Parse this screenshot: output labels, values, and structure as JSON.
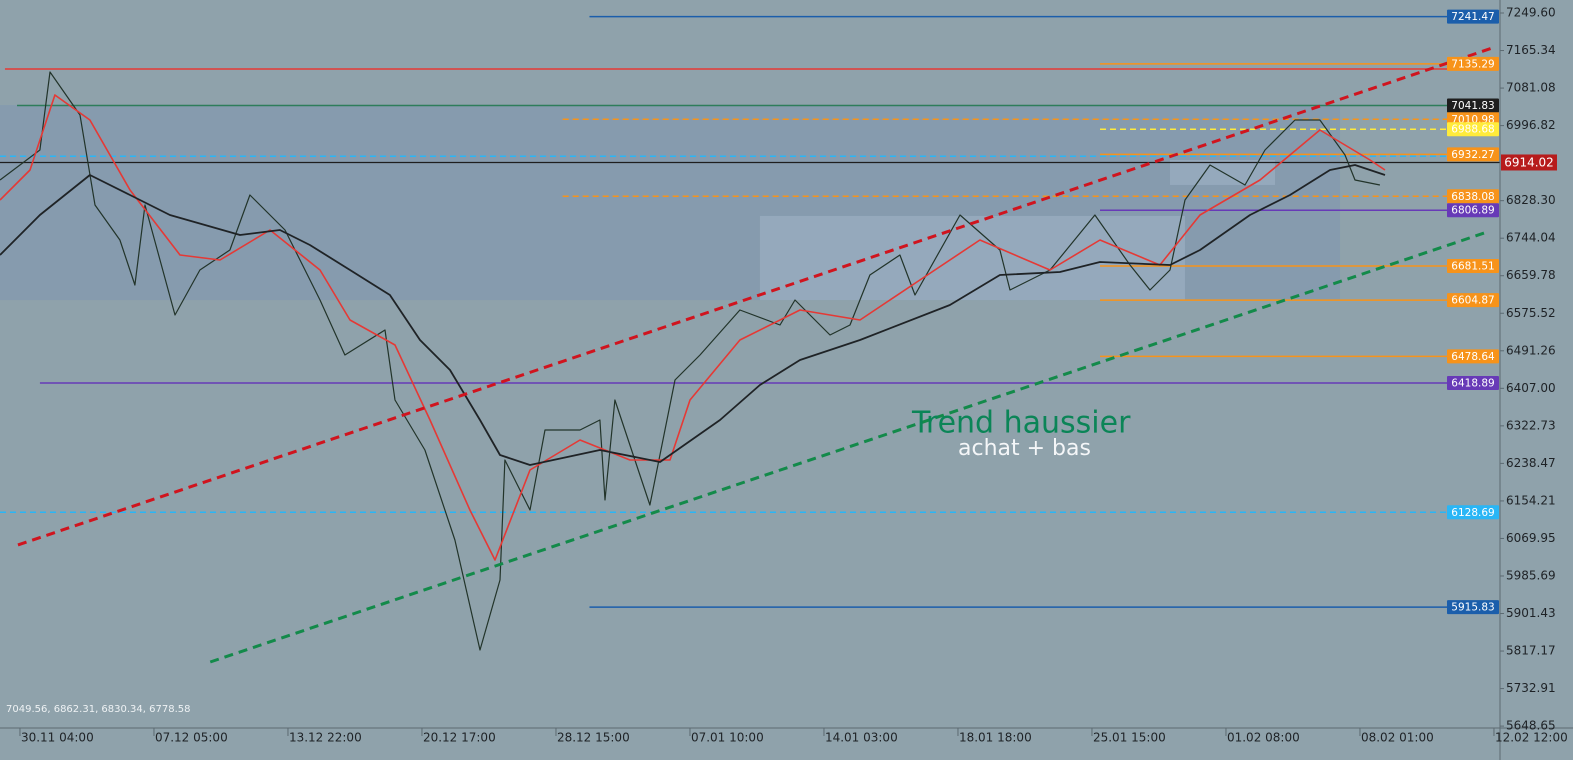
{
  "chart_data": {
    "type": "line",
    "background": "#8fa2ab",
    "xlim": [
      -0.149,
      11.045
    ],
    "ylim": [
      5644.4,
      7278.8
    ],
    "xticks": [
      {
        "value": 0,
        "label": "30.11 04:00"
      },
      {
        "value": 1,
        "label": "07.12 05:00"
      },
      {
        "value": 2,
        "label": "13.12 22:00"
      },
      {
        "value": 3,
        "label": "20.12 17:00"
      },
      {
        "value": 4,
        "label": "28.12 15:00"
      },
      {
        "value": 5,
        "label": "07.01 10:00"
      },
      {
        "value": 6,
        "label": "14.01 03:00"
      },
      {
        "value": 7,
        "label": "18.01 18:00"
      },
      {
        "value": 8,
        "label": "25.01 15:00"
      },
      {
        "value": 9,
        "label": "01.02 08:00"
      },
      {
        "value": 10,
        "label": "08.02 01:00"
      },
      {
        "value": 11,
        "label": "12.02 12:00"
      }
    ],
    "yticks": [
      {
        "value": 7249.6,
        "label": "7249.60"
      },
      7165.34,
      7081.08,
      6996.82,
      {
        "value": 6828.3,
        "label": "6828.30"
      },
      6744.04,
      6659.78,
      6575.52,
      6491.26,
      {
        "value": 6407,
        "label": "6407.00"
      },
      6322.73,
      6238.47,
      6154.21,
      6069.95,
      5985.69,
      5901.43,
      5817.17,
      5732.91,
      5648.65
    ],
    "zones": [
      {
        "x": [
          -0.149,
          9.851
        ],
        "y": [
          6605,
          7043
        ],
        "color": "#7f95b0"
      },
      {
        "x": [
          5.522,
          8.694
        ],
        "y": [
          6605,
          6794
        ],
        "color": "#a3b4c8"
      },
      {
        "x": [
          8.582,
          9.366
        ],
        "y": [
          6863.5,
          6919.6
        ],
        "color": "#a3b4c8"
      }
    ],
    "series": [
      {
        "color": "#22342a",
        "width": 1.2,
        "x": [
          -0.149,
          0.149,
          0.224,
          0.448,
          0.56,
          0.746,
          0.858,
          0.933,
          1.157,
          1.343,
          1.567,
          1.716,
          1.978,
          2.239,
          2.425,
          2.724,
          2.799,
          3.022,
          3.246,
          3.433,
          3.582,
          3.619,
          3.806,
          3.918,
          4.179,
          4.328,
          4.366,
          4.44,
          4.701,
          4.888,
          5.075,
          5.373,
          5.672,
          5.784,
          6.045,
          6.194,
          6.343,
          6.567,
          6.679,
          7.015,
          7.313,
          7.388,
          7.687,
          8.022,
          8.284,
          8.433,
          8.582,
          8.694,
          8.881,
          9.142,
          9.291,
          9.515,
          9.701,
          9.888,
          9.963,
          10.149
        ],
        "values": [
          6874.7,
          6942.1,
          7117.2,
          7020.6,
          6818.6,
          6740.0,
          6639.0,
          6818.6,
          6571.6,
          6672.7,
          6717.5,
          6841.0,
          6762.5,
          6605.3,
          6481.8,
          6537.9,
          6380.8,
          6268.5,
          6066.5,
          5819.5,
          5976.7,
          6246.1,
          6133.9,
          6313.5,
          6313.5,
          6335.9,
          6156.3,
          6380.8,
          6145.1,
          6425.7,
          6481.8,
          6582.8,
          6549.2,
          6605.3,
          6526.7,
          6549.2,
          6661.4,
          6706.3,
          6616.5,
          6796.1,
          6717.5,
          6627.7,
          6672.7,
          6796.1,
          6683.9,
          6627.7,
          6672.7,
          6829.8,
          6908.4,
          6863.5,
          6942.1,
          7009.4,
          7009.4,
          6930.8,
          6874.7,
          6863.5
        ]
      },
      {
        "color": "#e53935",
        "width": 1.6,
        "x": [
          -0.149,
          0.075,
          0.261,
          0.522,
          0.821,
          1.194,
          1.493,
          1.866,
          2.239,
          2.463,
          2.799,
          3.06,
          3.358,
          3.545,
          3.806,
          4.179,
          4.552,
          4.851,
          5.0,
          5.373,
          5.821,
          6.269,
          6.716,
          7.164,
          7.687,
          8.06,
          8.507,
          8.806,
          9.254,
          9.701,
          10.075,
          10.187
        ],
        "values": [
          6829.8,
          6897.2,
          7065.5,
          7009.4,
          6852.3,
          6706.3,
          6695.1,
          6762.5,
          6672.7,
          6560.4,
          6504.3,
          6335.9,
          6133.9,
          6021.6,
          6223.6,
          6291.0,
          6246.1,
          6246.1,
          6380.8,
          6515.5,
          6582.8,
          6560.4,
          6650.2,
          6740.0,
          6672.7,
          6740.0,
          6683.9,
          6796.1,
          6874.7,
          6987.0,
          6919.6,
          6897.2
        ]
      },
      {
        "color": "#1f2326",
        "width": 1.8,
        "x": [
          -0.149,
          0.149,
          0.522,
          0.821,
          1.119,
          1.642,
          1.94,
          2.164,
          2.463,
          2.761,
          2.985,
          3.209,
          3.433,
          3.582,
          3.806,
          4.328,
          4.776,
          5.224,
          5.522,
          5.821,
          6.269,
          6.94,
          7.313,
          7.761,
          8.06,
          8.582,
          8.806,
          9.179,
          9.478,
          9.776,
          9.963,
          10.187
        ],
        "values": [
          6706.3,
          6796.1,
          6885.9,
          6841.0,
          6796.1,
          6751.2,
          6762.5,
          6728.8,
          6672.7,
          6616.5,
          6515.5,
          6448.2,
          6335.9,
          6257.4,
          6234.9,
          6268.5,
          6241.6,
          6335.9,
          6414.5,
          6470.6,
          6515.5,
          6594.1,
          6661.4,
          6668.2,
          6690.6,
          6683.9,
          6717.5,
          6796.1,
          6841.0,
          6897.2,
          6908.4,
          6885.9
        ]
      }
    ],
    "trendlines": [
      {
        "x": [
          -0.015,
          11.01
        ],
        "y": [
          6055.3,
          7173.3
        ],
        "color": "#d0141e"
      },
      {
        "x": [
          1.42,
          10.95
        ],
        "y": [
          5792.6,
          6758.0
        ],
        "color": "#138a4a"
      }
    ],
    "levels": [
      {
        "value": 7241.47,
        "color": "#1b5eab",
        "from": 4.25,
        "dashed": false,
        "tag": true
      },
      {
        "value": 7124,
        "color": "#e53935",
        "from": -0.112,
        "dashed": false,
        "tag": false
      },
      {
        "value": 7135.29,
        "color": "#f7931a",
        "from": 8.06,
        "dashed": false,
        "tag": true
      },
      {
        "value": 7041.83,
        "color": "#2e7d5b",
        "from": -0.022,
        "dashed": false,
        "tag": true,
        "tag_color": "#1e1e1e"
      },
      {
        "value": 7010.98,
        "color": "#f7931a",
        "from": 4.05,
        "dashed": true,
        "tag": true
      },
      {
        "value": 6988.68,
        "color": "#ffeb3b",
        "from": 8.06,
        "dashed": true,
        "tag": true
      },
      {
        "value": 6932.27,
        "color": "#f7931a",
        "from": 8.06,
        "dashed": false,
        "tag": true
      },
      {
        "value": 6928,
        "color": "#29b6f6",
        "from": -0.149,
        "dashed": true,
        "tag": false
      },
      {
        "value": 6838.08,
        "color": "#f7931a",
        "from": 4.05,
        "dashed": true,
        "tag": true
      },
      {
        "value": 6806.89,
        "color": "#673ab7",
        "from": 8.06,
        "dashed": false,
        "tag": true
      },
      {
        "value": 6681.51,
        "color": "#f7931a",
        "from": 8.06,
        "dashed": false,
        "tag": true
      },
      {
        "value": 6604.87,
        "color": "#f7931a",
        "from": 8.06,
        "dashed": false,
        "tag": true
      },
      {
        "value": 6478.64,
        "color": "#f7931a",
        "from": 8.06,
        "dashed": false,
        "tag": true
      },
      {
        "value": 6418.89,
        "color": "#673ab7",
        "from": 0.149,
        "dashed": false,
        "tag": true
      },
      {
        "value": 6128.69,
        "color": "#29b6f6",
        "from": -0.149,
        "dashed": true,
        "tag": true
      },
      {
        "value": 5915.83,
        "color": "#1b5eab",
        "from": 4.25,
        "dashed": false,
        "tag": true
      }
    ],
    "current_price": 6914.02,
    "current_price_color": "#b71c1c",
    "annotation_title": "Trend haussier",
    "annotation_subtitle": "achat + bas",
    "ohlc_text": "7049.56, 6862.31, 6830.34, 6778.58"
  }
}
